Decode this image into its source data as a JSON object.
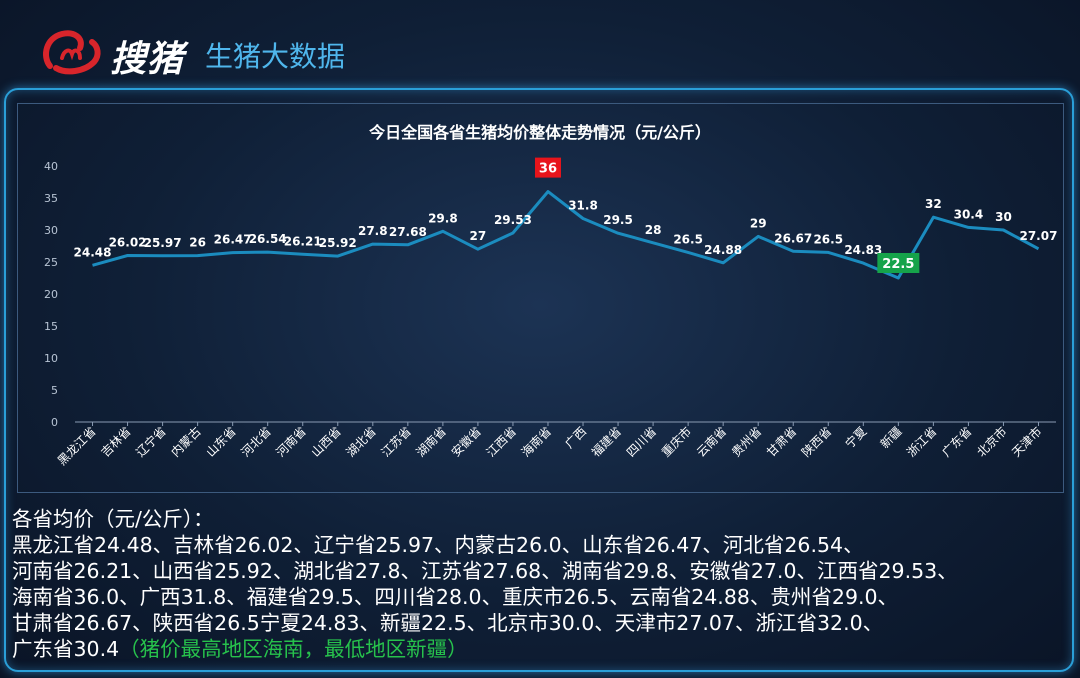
{
  "header": {
    "brand": "搜猪",
    "subtitle": "生猪大数据"
  },
  "chart_data": {
    "type": "line",
    "title": "今日全国各省生猪均价整体走势情况（元/公斤）",
    "categories": [
      "黑龙江省",
      "吉林省",
      "辽宁省",
      "内蒙古",
      "山东省",
      "河北省",
      "河南省",
      "山西省",
      "湖北省",
      "江苏省",
      "湖南省",
      "安徽省",
      "江西省",
      "海南省",
      "广西",
      "福建省",
      "四川省",
      "重庆市",
      "云南省",
      "贵州省",
      "甘肃省",
      "陕西省",
      "宁夏",
      "新疆",
      "浙江省",
      "广东省",
      "北京市",
      "天津市"
    ],
    "values": [
      24.48,
      26.02,
      25.97,
      26,
      26.47,
      26.54,
      26.21,
      25.92,
      27.8,
      27.68,
      29.8,
      27,
      29.53,
      36,
      31.8,
      29.5,
      28,
      26.5,
      24.88,
      29,
      26.67,
      26.5,
      24.83,
      22.5,
      32,
      30.4,
      30,
      27.07
    ],
    "labels": [
      "24.48",
      "26.02",
      "25.97",
      "26",
      "26.47",
      "26.54",
      "26.21",
      "25.92",
      "27.8",
      "27.68",
      "29.8",
      "27",
      "29.53",
      "36",
      "31.8",
      "29.5",
      "28",
      "26.5",
      "24.88",
      "29",
      "26.67",
      "26.5",
      "24.83",
      "22.5",
      "32",
      "30.4",
      "30",
      "27.07"
    ],
    "ylim": [
      0,
      40
    ],
    "yticks": [
      "0",
      "5",
      "10",
      "15",
      "20",
      "25",
      "30",
      "35",
      "40"
    ],
    "max_index": 13,
    "min_index": 23,
    "line_color": "#1b8cbf",
    "max_color": "#e8141b",
    "min_color": "#16a34a",
    "grid": false
  },
  "summary": {
    "heading": "各省均价（元/公斤）：",
    "lines": [
      "黑龙江省24.48、吉林省26.02、辽宁省25.97、内蒙古26.0、山东省26.47、河北省26.54、",
      "河南省26.21、山西省25.92、湖北省27.8、江苏省27.68、湖南省29.8、安徽省27.0、江西省29.53、",
      "海南省36.0、广西31.8、福建省29.5、四川省28.0、重庆市26.5、云南省24.88、贵州省29.0、",
      "甘肃省26.67、陕西省26.5宁夏24.83、新疆22.5、北京市30.0、天津市27.07、浙江省32.0、"
    ],
    "last_line": "广东省30.4",
    "note": "（猪价最高地区海南，最低地区新疆）"
  }
}
